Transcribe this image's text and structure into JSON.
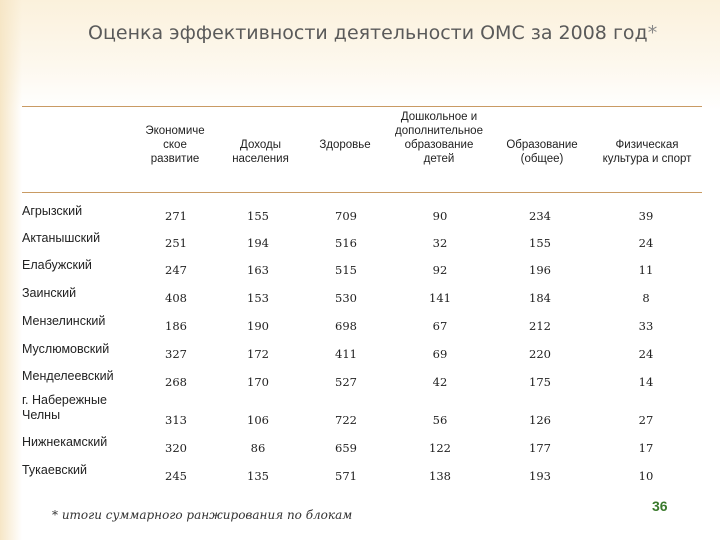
{
  "title": "Оценка эффективности деятельности ОМС за 2008 год",
  "title_mark": "*",
  "columns": [
    "Экономиче\nское\nразвитие",
    "Доходы\nнаселения",
    "Здоровье",
    "Дошкольное и\nдополнительное\nобразование\nдетей",
    "Образование\n(общее)",
    "Физическая\nкультура и спорт"
  ],
  "rows": [
    {
      "name": "Агрызский",
      "values": [
        "271",
        "155",
        "709",
        "90",
        "234",
        "39"
      ]
    },
    {
      "name": "Актанышский",
      "values": [
        "251",
        "194",
        "516",
        "32",
        "155",
        "24"
      ]
    },
    {
      "name": "Елабужский",
      "values": [
        "247",
        "163",
        "515",
        "92",
        "196",
        "11"
      ]
    },
    {
      "name": "Заинский",
      "values": [
        "408",
        "153",
        "530",
        "141",
        "184",
        "8"
      ]
    },
    {
      "name": "Мензелинский",
      "values": [
        "186",
        "190",
        "698",
        "67",
        "212",
        "33"
      ]
    },
    {
      "name": "Муслюмовский",
      "values": [
        "327",
        "172",
        "411",
        "69",
        "220",
        "24"
      ]
    },
    {
      "name": "Менделеевский",
      "values": [
        "268",
        "170",
        "527",
        "42",
        "175",
        "14"
      ]
    },
    {
      "name": "г. Набережные\nЧелны",
      "values": [
        "313",
        "106",
        "722",
        "56",
        "126",
        "27"
      ]
    },
    {
      "name": "Нижнекамский",
      "values": [
        "320",
        "86",
        "659",
        "122",
        "177",
        "17"
      ]
    },
    {
      "name": "Тукаевский",
      "values": [
        "245",
        "135",
        "571",
        "138",
        "193",
        "10"
      ]
    }
  ],
  "footnote": "* итоги суммарного ранжирования по блокам",
  "page_number": "36",
  "colors": {
    "accent_line": "#c99b63",
    "page_number": "#3a7a2c"
  }
}
